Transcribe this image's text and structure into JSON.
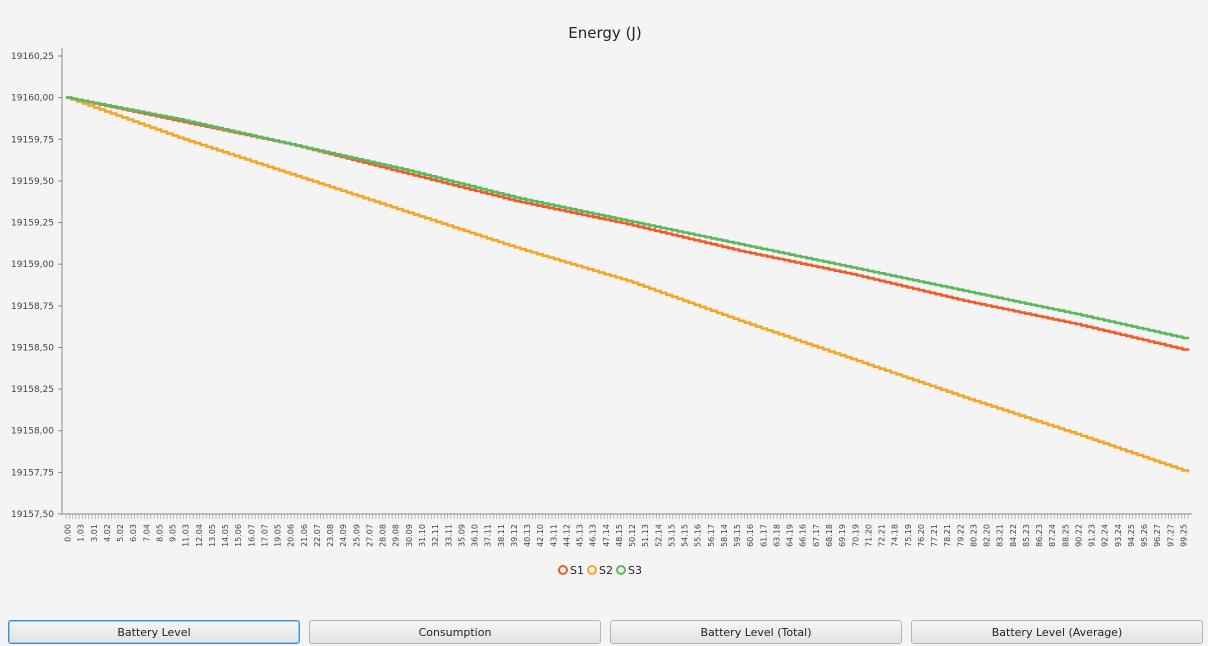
{
  "chart_data": {
    "type": "line",
    "title": "Energy (J)",
    "xlabel": "",
    "ylabel": "",
    "ylim": [
      19157.5,
      19160.25
    ],
    "yticks": [
      "19157,50",
      "19157,75",
      "19158,00",
      "19158,25",
      "19158,50",
      "19158,75",
      "19159,00",
      "19159,25",
      "19159,50",
      "19159,75",
      "19160,00",
      "19160,25"
    ],
    "xlim": [
      0,
      100
    ],
    "xticks": [
      "0.00",
      "1.03",
      "3.01",
      "4.02",
      "5.02",
      "6.03",
      "7.04",
      "8.05",
      "9.05",
      "11.03",
      "12.04",
      "13.05",
      "14.05",
      "15.06",
      "16.07",
      "17.07",
      "19.05",
      "20.06",
      "21.06",
      "22.07",
      "23.08",
      "24.09",
      "25.09",
      "27.07",
      "28.08",
      "29.08",
      "30.09",
      "31.10",
      "32.11",
      "33.11",
      "35.09",
      "36.10",
      "37.11",
      "38.11",
      "39.12",
      "40.13",
      "42.10",
      "43.11",
      "44.12",
      "45.13",
      "46.13",
      "47.14",
      "48.15",
      "50.12",
      "51.13",
      "52.14",
      "53.15",
      "54.15",
      "55.16",
      "56.17",
      "58.14",
      "59.15",
      "60.16",
      "61.17",
      "63.18",
      "64.19",
      "66.16",
      "67.17",
      "68.18",
      "69.19",
      "70.19",
      "71.20",
      "72.21",
      "74.18",
      "75.19",
      "76.20",
      "77.21",
      "78.21",
      "79.22",
      "80.23",
      "82.20",
      "83.21",
      "84.22",
      "85.23",
      "86.23",
      "87.24",
      "88.25",
      "90.22",
      "91.23",
      "92.24",
      "93.24",
      "94.25",
      "95.26",
      "96.27",
      "97.27",
      "99.25"
    ],
    "legend_placement": "bottom-center",
    "grid": false,
    "series": [
      {
        "name": "S1",
        "color": "#f05b2a",
        "x": [
          0,
          10,
          20,
          30,
          40,
          50,
          60,
          70,
          80,
          90,
          100
        ],
        "values": [
          19160.0,
          19159.86,
          19159.72,
          19159.55,
          19159.38,
          19159.24,
          19159.08,
          19158.94,
          19158.78,
          19158.64,
          19158.48
        ]
      },
      {
        "name": "S2",
        "color": "#f3a72a",
        "x": [
          0,
          10,
          20,
          30,
          40,
          50,
          60,
          70,
          80,
          90,
          100
        ],
        "values": [
          19160.0,
          19159.76,
          19159.54,
          19159.32,
          19159.1,
          19158.9,
          19158.66,
          19158.43,
          19158.2,
          19157.98,
          19157.75
        ]
      },
      {
        "name": "S3",
        "color": "#5cb85c",
        "x": [
          0,
          10,
          20,
          30,
          40,
          50,
          60,
          70,
          80,
          90,
          100
        ],
        "values": [
          19160.0,
          19159.87,
          19159.72,
          19159.57,
          19159.4,
          19159.26,
          19159.12,
          19158.98,
          19158.84,
          19158.7,
          19158.55
        ]
      }
    ]
  },
  "buttons": {
    "battery_level": "Battery Level",
    "consumption": "Consumption",
    "battery_level_total": "Battery Level (Total)",
    "battery_level_average": "Battery Level (Average)"
  }
}
